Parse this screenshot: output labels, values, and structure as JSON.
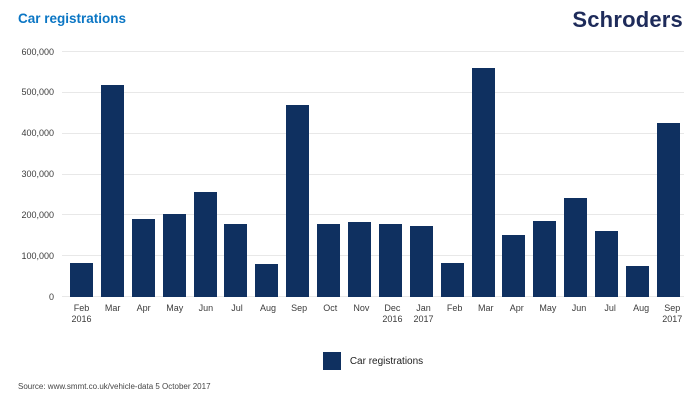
{
  "header": {
    "title": "Car registrations",
    "logo_text": "Schroders"
  },
  "colors": {
    "bar": "#0f3060",
    "title": "#0b76c4",
    "logo": "#1e2b5a",
    "gridline": "#e8e8e8",
    "axis_text": "#3c3c3c"
  },
  "chart_data": {
    "type": "bar",
    "title": "Car registrations",
    "xlabel": "",
    "ylabel": "",
    "ylim": [
      0,
      600000
    ],
    "ytick_interval": 100000,
    "ytick_labels": [
      "0",
      "100,000",
      "200,000",
      "300,000",
      "400,000",
      "500,000",
      "600,000"
    ],
    "grid": "horizontal",
    "legend_position": "bottom-center",
    "categories": [
      [
        "Feb",
        "2016"
      ],
      [
        "Mar"
      ],
      [
        "Apr"
      ],
      [
        "May"
      ],
      [
        "Jun"
      ],
      [
        "Jul"
      ],
      [
        "Aug"
      ],
      [
        "Sep"
      ],
      [
        "Oct"
      ],
      [
        "Nov"
      ],
      [
        "Dec",
        "2016"
      ],
      [
        "Jan",
        "2017"
      ],
      [
        "Feb"
      ],
      [
        "Mar"
      ],
      [
        "Apr"
      ],
      [
        "May"
      ],
      [
        "Jun"
      ],
      [
        "Jul"
      ],
      [
        "Aug"
      ],
      [
        "Sep",
        "2017"
      ]
    ],
    "series": [
      {
        "name": "Car registrations",
        "values": [
          83000,
          518000,
          190000,
          204000,
          256000,
          179000,
          82000,
          470000,
          179000,
          184000,
          178000,
          175000,
          83000,
          562000,
          152000,
          186000,
          243000,
          162000,
          76000,
          426000
        ]
      }
    ]
  },
  "legend": {
    "label": "Car registrations"
  },
  "source": "Source: www.smmt.co.uk/vehicle-data 5 October 2017"
}
